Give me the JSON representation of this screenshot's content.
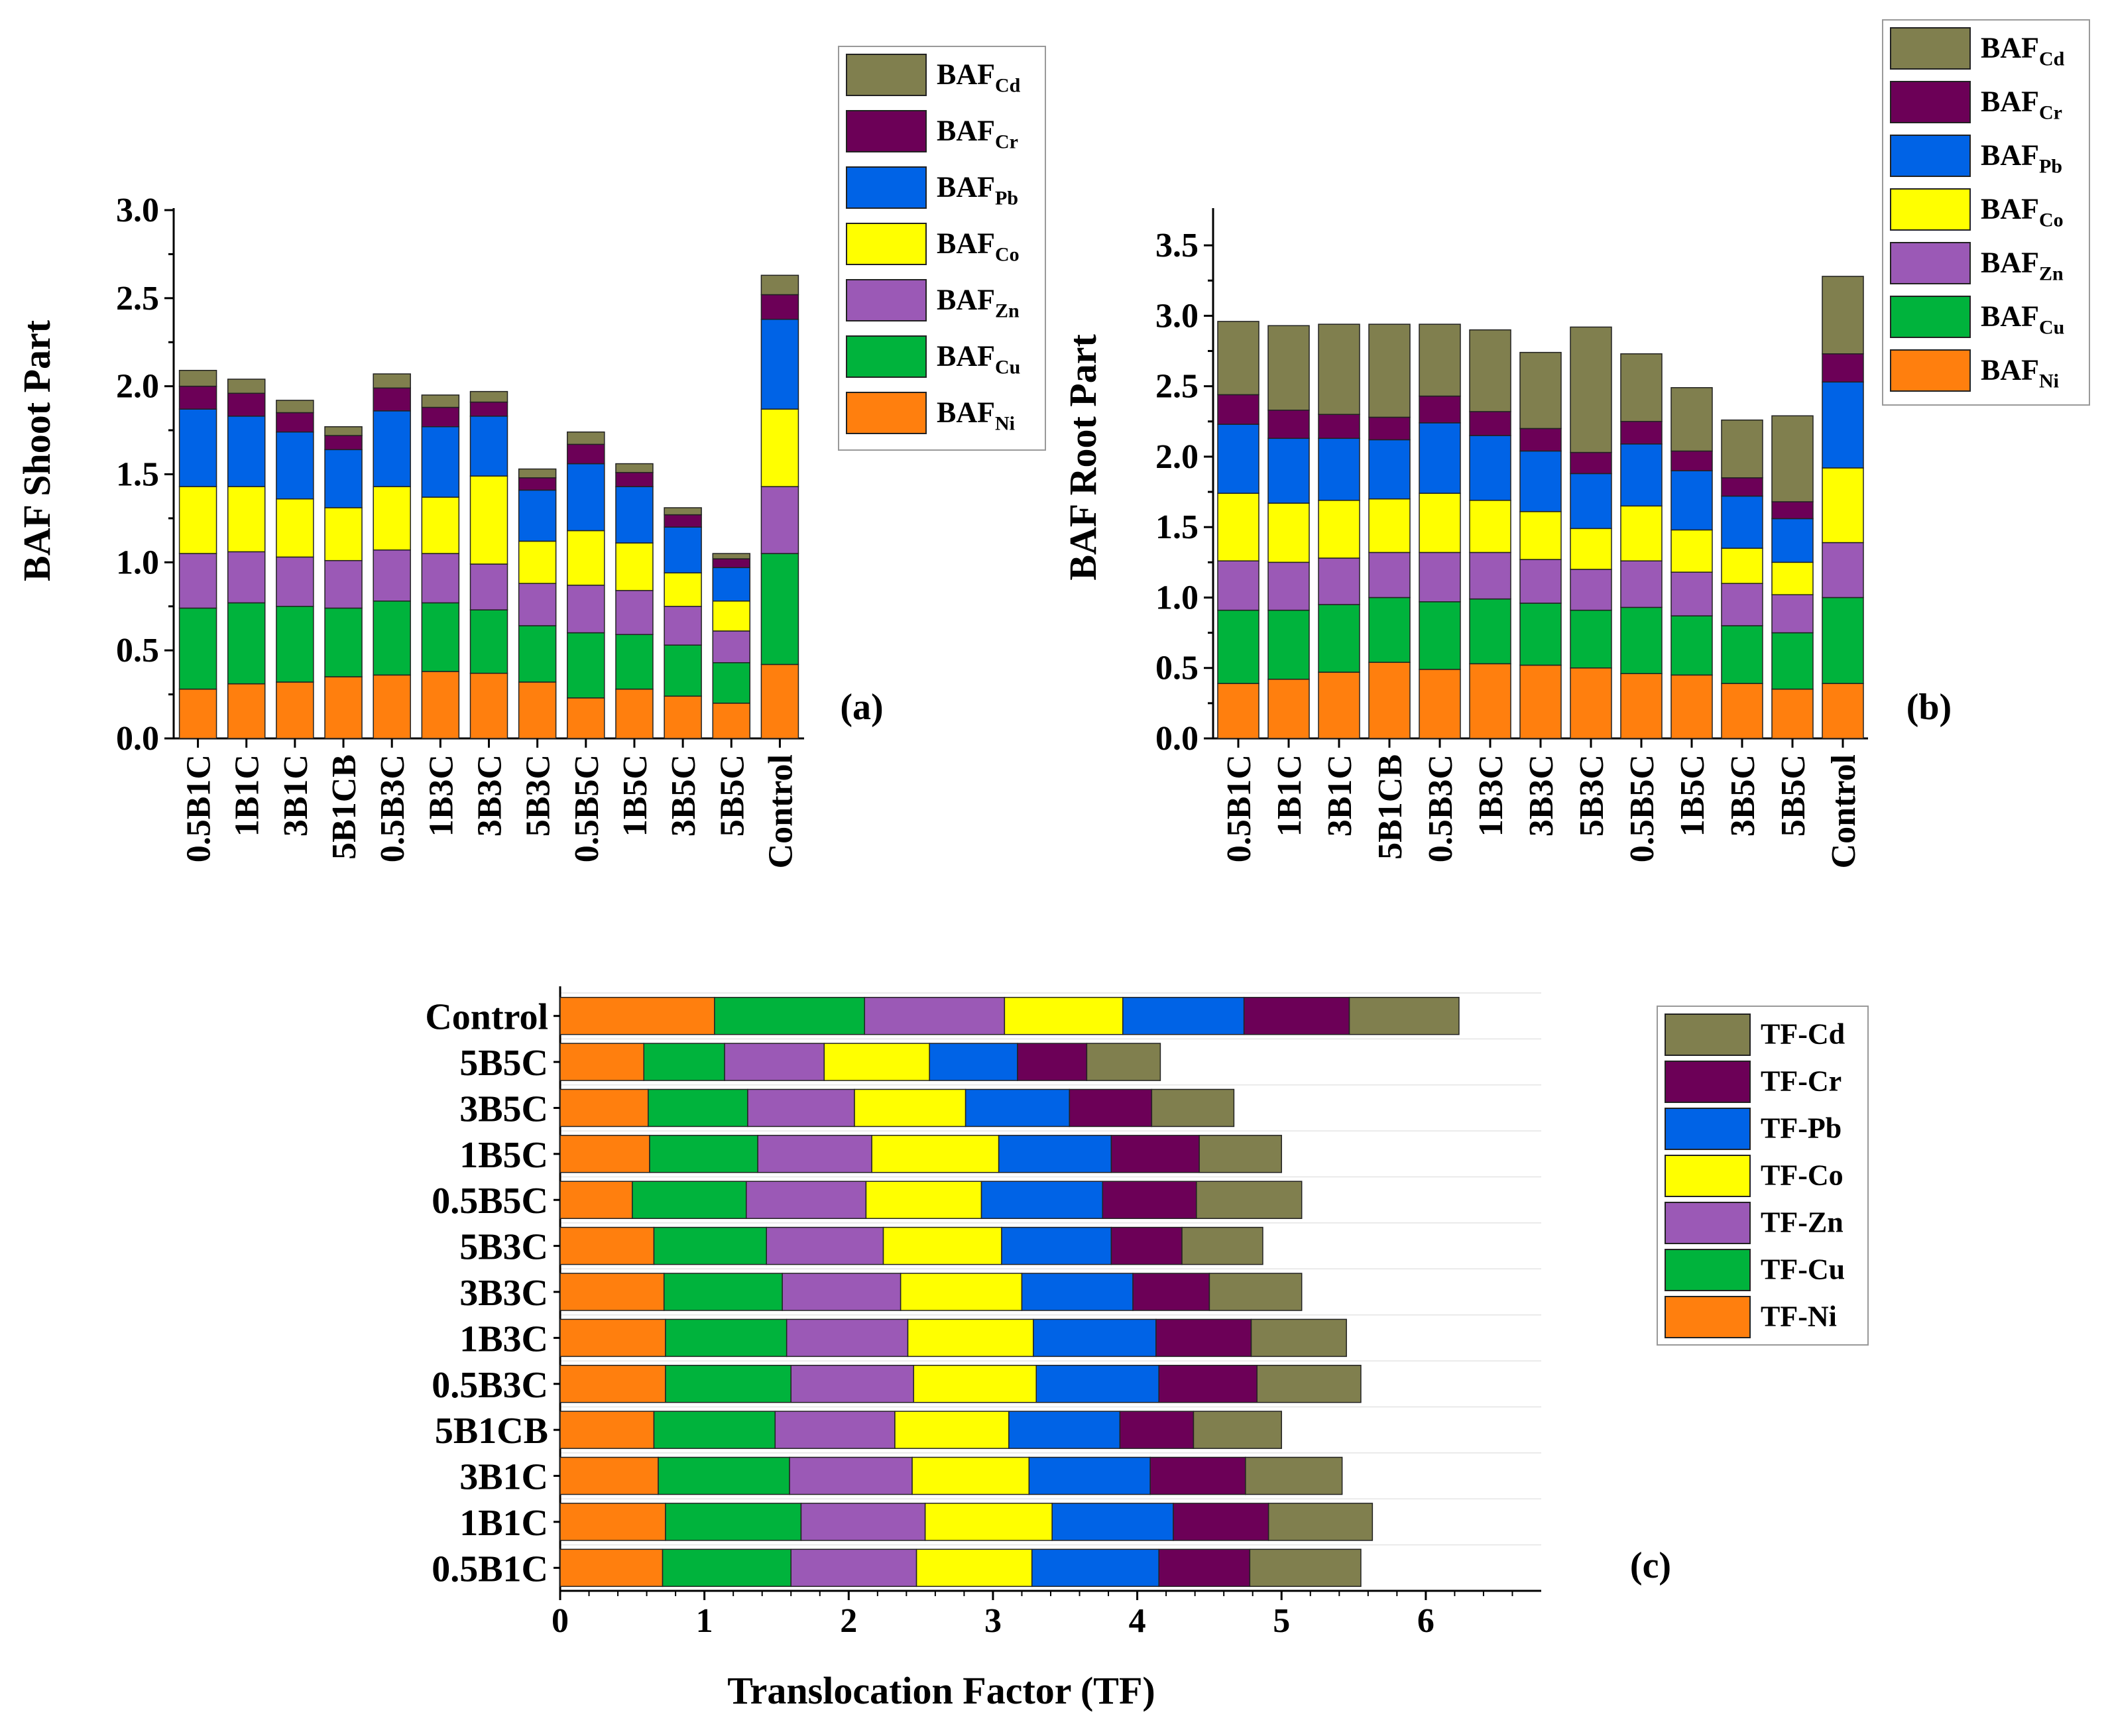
{
  "colors": {
    "Cd": "#807F4E",
    "Cr": "#6C0057",
    "Pb": "#0063E6",
    "Co": "#FFFF00",
    "Zn": "#9B59B6",
    "Cu": "#00B33C",
    "Ni": "#FF7F0E"
  },
  "chart_data": [
    {
      "id": "a",
      "type": "bar",
      "stacked": true,
      "orientation": "vertical",
      "panel_label": "(a)",
      "title": "",
      "xlabel": "",
      "ylabel": "BAF Shoot Part",
      "ylim": [
        0,
        3.0
      ],
      "yticks": [
        "0.0",
        "0.5",
        "1.0",
        "1.5",
        "2.0",
        "2.5",
        "3.0"
      ],
      "categories": [
        "0.5B1C",
        "1B1C",
        "3B1C",
        "5B1CB",
        "0.5B3C",
        "1B3C",
        "3B3C",
        "5B3C",
        "0.5B5C",
        "1B5C",
        "3B5C",
        "5B5C",
        "Control"
      ],
      "series": [
        {
          "key": "Ni",
          "name": "BAF",
          "sub": "Ni",
          "values": [
            0.28,
            0.31,
            0.32,
            0.35,
            0.36,
            0.38,
            0.37,
            0.32,
            0.23,
            0.28,
            0.24,
            0.2,
            0.42
          ]
        },
        {
          "key": "Cu",
          "name": "BAF",
          "sub": "Cu",
          "values": [
            0.46,
            0.46,
            0.43,
            0.39,
            0.42,
            0.39,
            0.36,
            0.32,
            0.37,
            0.31,
            0.29,
            0.23,
            0.63
          ]
        },
        {
          "key": "Zn",
          "name": "BAF",
          "sub": "Zn",
          "values": [
            0.31,
            0.29,
            0.28,
            0.27,
            0.29,
            0.28,
            0.26,
            0.24,
            0.27,
            0.25,
            0.22,
            0.18,
            0.38
          ]
        },
        {
          "key": "Co",
          "name": "BAF",
          "sub": "Co",
          "values": [
            0.38,
            0.37,
            0.33,
            0.3,
            0.36,
            0.32,
            0.5,
            0.24,
            0.31,
            0.27,
            0.19,
            0.17,
            0.44
          ]
        },
        {
          "key": "Pb",
          "name": "BAF",
          "sub": "Pb",
          "values": [
            0.44,
            0.4,
            0.38,
            0.33,
            0.43,
            0.4,
            0.34,
            0.29,
            0.38,
            0.32,
            0.26,
            0.19,
            0.51
          ]
        },
        {
          "key": "Cr",
          "name": "BAF",
          "sub": "Cr",
          "values": [
            0.13,
            0.13,
            0.11,
            0.08,
            0.13,
            0.11,
            0.08,
            0.07,
            0.11,
            0.08,
            0.07,
            0.05,
            0.14
          ]
        },
        {
          "key": "Cd",
          "name": "BAF",
          "sub": "Cd",
          "values": [
            0.09,
            0.08,
            0.07,
            0.05,
            0.08,
            0.07,
            0.06,
            0.05,
            0.07,
            0.05,
            0.04,
            0.03,
            0.11
          ]
        }
      ],
      "legend_order": [
        "Cd",
        "Cr",
        "Pb",
        "Co",
        "Zn",
        "Cu",
        "Ni"
      ],
      "legend_position": "top-right"
    },
    {
      "id": "b",
      "type": "bar",
      "stacked": true,
      "orientation": "vertical",
      "panel_label": "(b)",
      "title": "",
      "xlabel": "",
      "ylabel": "BAF Root Part",
      "ylim": [
        0,
        3.75
      ],
      "yticks": [
        "0.0",
        "0.5",
        "1.0",
        "1.5",
        "2.0",
        "2.5",
        "3.0",
        "3.5"
      ],
      "categories": [
        "0.5B1C",
        "1B1C",
        "3B1C",
        "5B1CB",
        "0.5B3C",
        "1B3C",
        "3B3C",
        "5B3C",
        "0.5B5C",
        "1B5C",
        "3B5C",
        "5B5C",
        "Control"
      ],
      "series": [
        {
          "key": "Ni",
          "name": "BAF",
          "sub": "Ni",
          "values": [
            0.39,
            0.42,
            0.47,
            0.54,
            0.49,
            0.53,
            0.52,
            0.5,
            0.46,
            0.45,
            0.39,
            0.35,
            0.39
          ]
        },
        {
          "key": "Cu",
          "name": "BAF",
          "sub": "Cu",
          "values": [
            0.52,
            0.49,
            0.48,
            0.46,
            0.48,
            0.46,
            0.44,
            0.41,
            0.47,
            0.42,
            0.41,
            0.4,
            0.61
          ]
        },
        {
          "key": "Zn",
          "name": "BAF",
          "sub": "Zn",
          "values": [
            0.35,
            0.34,
            0.33,
            0.32,
            0.35,
            0.33,
            0.31,
            0.29,
            0.33,
            0.31,
            0.3,
            0.27,
            0.39
          ]
        },
        {
          "key": "Co",
          "name": "BAF",
          "sub": "Co",
          "values": [
            0.48,
            0.42,
            0.41,
            0.38,
            0.42,
            0.37,
            0.34,
            0.29,
            0.39,
            0.3,
            0.25,
            0.23,
            0.53
          ]
        },
        {
          "key": "Pb",
          "name": "BAF",
          "sub": "Pb",
          "values": [
            0.49,
            0.46,
            0.44,
            0.42,
            0.5,
            0.46,
            0.43,
            0.39,
            0.44,
            0.42,
            0.37,
            0.31,
            0.61
          ]
        },
        {
          "key": "Cr",
          "name": "BAF",
          "sub": "Cr",
          "values": [
            0.21,
            0.2,
            0.17,
            0.16,
            0.19,
            0.17,
            0.16,
            0.15,
            0.16,
            0.14,
            0.13,
            0.12,
            0.2
          ]
        },
        {
          "key": "Cd",
          "name": "BAF",
          "sub": "Cd",
          "values": [
            0.52,
            0.6,
            0.64,
            0.66,
            0.51,
            0.58,
            0.54,
            0.89,
            0.48,
            0.45,
            0.41,
            0.61,
            0.55
          ]
        }
      ],
      "legend_order": [
        "Cd",
        "Cr",
        "Pb",
        "Co",
        "Zn",
        "Cu",
        "Ni"
      ],
      "legend_position": "top-right"
    },
    {
      "id": "c",
      "type": "bar",
      "stacked": true,
      "orientation": "horizontal",
      "panel_label": "(c)",
      "title": "",
      "xlabel": "Translocation Factor (TF)",
      "ylabel": "",
      "xlim": [
        0,
        6.8
      ],
      "xticks": [
        "0",
        "1",
        "2",
        "3",
        "4",
        "5",
        "6"
      ],
      "categories": [
        "0.5B1C",
        "1B1C",
        "3B1C",
        "5B1CB",
        "0.5B3C",
        "1B3C",
        "3B3C",
        "5B3C",
        "0.5B5C",
        "1B5C",
        "3B5C",
        "5B5C",
        "Control"
      ],
      "series": [
        {
          "key": "Ni",
          "name": "TF-Ni",
          "values": [
            0.71,
            0.73,
            0.68,
            0.65,
            0.73,
            0.73,
            0.72,
            0.65,
            0.5,
            0.62,
            0.61,
            0.58,
            1.07
          ]
        },
        {
          "key": "Cu",
          "name": "TF-Cu",
          "values": [
            0.89,
            0.94,
            0.91,
            0.84,
            0.87,
            0.84,
            0.82,
            0.78,
            0.79,
            0.75,
            0.69,
            0.56,
            1.04
          ]
        },
        {
          "key": "Zn",
          "name": "TF-Zn",
          "values": [
            0.87,
            0.86,
            0.85,
            0.83,
            0.85,
            0.84,
            0.82,
            0.81,
            0.83,
            0.79,
            0.74,
            0.69,
            0.97
          ]
        },
        {
          "key": "Co",
          "name": "TF-Co",
          "values": [
            0.8,
            0.88,
            0.81,
            0.79,
            0.85,
            0.87,
            0.84,
            0.82,
            0.8,
            0.88,
            0.77,
            0.73,
            0.82
          ]
        },
        {
          "key": "Pb",
          "name": "TF-Pb",
          "values": [
            0.88,
            0.84,
            0.84,
            0.77,
            0.85,
            0.85,
            0.77,
            0.76,
            0.84,
            0.78,
            0.72,
            0.61,
            0.84
          ]
        },
        {
          "key": "Cr",
          "name": "TF-Cr",
          "values": [
            0.63,
            0.66,
            0.66,
            0.51,
            0.68,
            0.66,
            0.53,
            0.49,
            0.65,
            0.61,
            0.57,
            0.48,
            0.73
          ]
        },
        {
          "key": "Cd",
          "name": "TF-Cd",
          "values": [
            0.77,
            0.72,
            0.67,
            0.61,
            0.72,
            0.66,
            0.64,
            0.56,
            0.73,
            0.57,
            0.57,
            0.51,
            0.76
          ]
        }
      ],
      "legend_order": [
        "Cd",
        "Cr",
        "Pb",
        "Co",
        "Zn",
        "Cu",
        "Ni"
      ],
      "legend_position": "right"
    }
  ]
}
